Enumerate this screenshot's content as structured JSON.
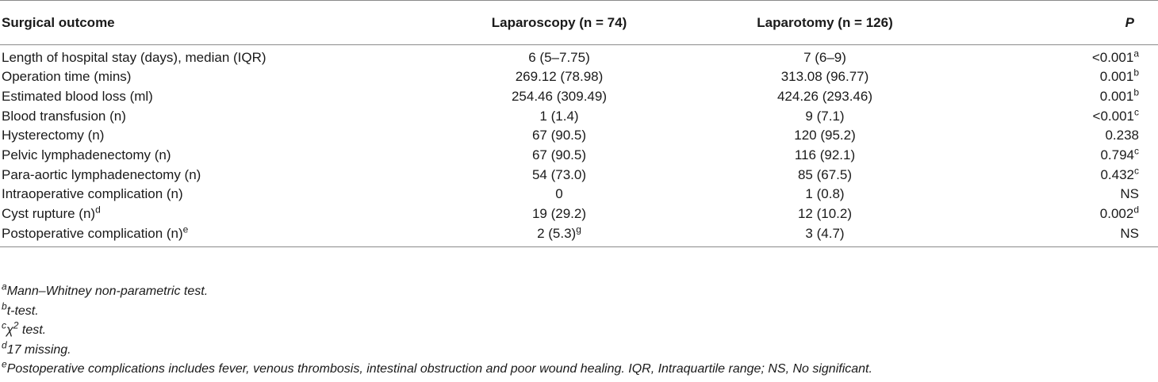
{
  "table": {
    "headers": [
      "Surgical outcome",
      "Laparoscopy (n = 74)",
      "Laparotomy (n = 126)",
      "P"
    ],
    "rows": [
      {
        "outcome": "Length of hospital stay (days), median (IQR)",
        "outcome_sup": "",
        "lap": "6 (5–7.75)",
        "lap_sup": "",
        "open": "7 (6–9)",
        "p": "<0.001",
        "p_sup": "a"
      },
      {
        "outcome": "Operation time (mins)",
        "outcome_sup": "",
        "lap": "269.12 (78.98)",
        "lap_sup": "",
        "open": "313.08 (96.77)",
        "p": "0.001",
        "p_sup": "b"
      },
      {
        "outcome": "Estimated blood loss (ml)",
        "outcome_sup": "",
        "lap": "254.46 (309.49)",
        "lap_sup": "",
        "open": "424.26 (293.46)",
        "p": "0.001",
        "p_sup": "b"
      },
      {
        "outcome": "Blood transfusion (n)",
        "outcome_sup": "",
        "lap": "1 (1.4)",
        "lap_sup": "",
        "open": "9 (7.1)",
        "p": "<0.001",
        "p_sup": "c"
      },
      {
        "outcome": "Hysterectomy (n)",
        "outcome_sup": "",
        "lap": "67 (90.5)",
        "lap_sup": "",
        "open": "120 (95.2)",
        "p": "0.238",
        "p_sup": ""
      },
      {
        "outcome": "Pelvic lymphadenectomy (n)",
        "outcome_sup": "",
        "lap": "67 (90.5)",
        "lap_sup": "",
        "open": "116 (92.1)",
        "p": "0.794",
        "p_sup": "c"
      },
      {
        "outcome": "Para-aortic lymphadenectomy (n)",
        "outcome_sup": "",
        "lap": "54 (73.0)",
        "lap_sup": "",
        "open": "85 (67.5)",
        "p": "0.432",
        "p_sup": "c"
      },
      {
        "outcome": "Intraoperative complication (n)",
        "outcome_sup": "",
        "lap": "0",
        "lap_sup": "",
        "open": "1 (0.8)",
        "p": "NS",
        "p_sup": ""
      },
      {
        "outcome": "Cyst rupture (n)",
        "outcome_sup": "d",
        "lap": "19 (29.2)",
        "lap_sup": "",
        "open": "12 (10.2)",
        "p": "0.002",
        "p_sup": "d"
      },
      {
        "outcome": "Postoperative complication (n)",
        "outcome_sup": "e",
        "lap": "2 (5.3)",
        "lap_sup": "g",
        "open": "3 (4.7)",
        "p": "NS",
        "p_sup": ""
      }
    ]
  },
  "footnotes": [
    {
      "mark": "a",
      "text": "Mann–Whitney non-parametric test."
    },
    {
      "mark": "b",
      "text": "t-test."
    },
    {
      "mark": "c",
      "text": "χ",
      "text_sup": "2",
      "text_after": " test."
    },
    {
      "mark": "d",
      "text": "17 missing."
    },
    {
      "mark": "e",
      "text": "Postoperative complications includes fever, venous thrombosis, intestinal obstruction and poor wound healing. IQR, Intraquartile range; NS, No significant."
    }
  ]
}
